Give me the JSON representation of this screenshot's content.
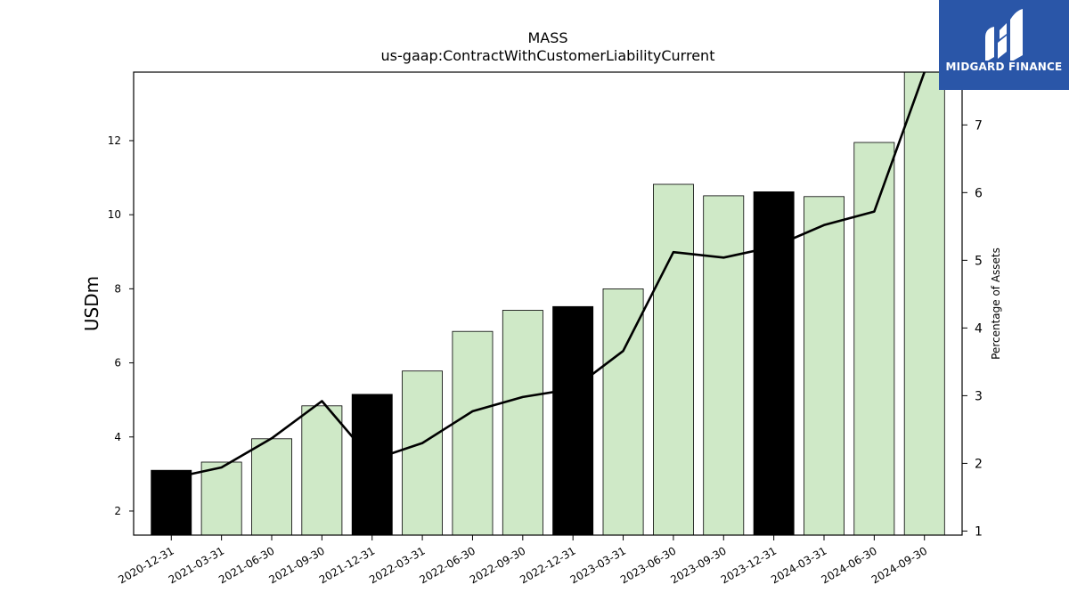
{
  "chart_data": {
    "type": "bar",
    "title": "MASS",
    "subtitle": "us-gaap:ContractWithCustomerLiabilityCurrent",
    "ylabel": "USDm",
    "y2label": "Percentage of Assets",
    "ylim": [
      1.35,
      13.85
    ],
    "y2lim": [
      0.94,
      7.78
    ],
    "yticks": [
      2,
      4,
      6,
      8,
      10,
      12
    ],
    "y2ticks": [
      1,
      2,
      3,
      4,
      5,
      6,
      7
    ],
    "categories": [
      "2020-12-31",
      "2021-03-31",
      "2021-06-30",
      "2021-09-30",
      "2021-12-31",
      "2022-03-31",
      "2022-06-30",
      "2022-09-30",
      "2022-12-31",
      "2023-03-31",
      "2023-06-30",
      "2023-09-30",
      "2023-12-31",
      "2024-03-31",
      "2024-06-30",
      "2024-09-30"
    ],
    "series": [
      {
        "type": "bar",
        "values": [
          3.1,
          3.32,
          3.95,
          4.84,
          5.15,
          5.78,
          6.85,
          7.42,
          7.52,
          8.0,
          10.82,
          10.51,
          10.62,
          10.49,
          11.95,
          13.85
        ],
        "highlight": [
          true,
          false,
          false,
          false,
          true,
          false,
          false,
          false,
          true,
          false,
          false,
          false,
          true,
          false,
          false,
          false
        ],
        "colors": {
          "normal": "#cfe9c7",
          "highlight": "#000000",
          "edge": "#000000"
        }
      },
      {
        "type": "line",
        "axis": "right",
        "values": [
          1.78,
          1.94,
          2.37,
          2.92,
          2.05,
          2.3,
          2.77,
          2.98,
          3.1,
          3.66,
          5.12,
          5.04,
          5.2,
          5.52,
          5.72,
          7.8
        ],
        "color": "#000000"
      }
    ]
  },
  "logo": {
    "name": "MIDGARD FINANCE",
    "color": "#2a56a8"
  }
}
